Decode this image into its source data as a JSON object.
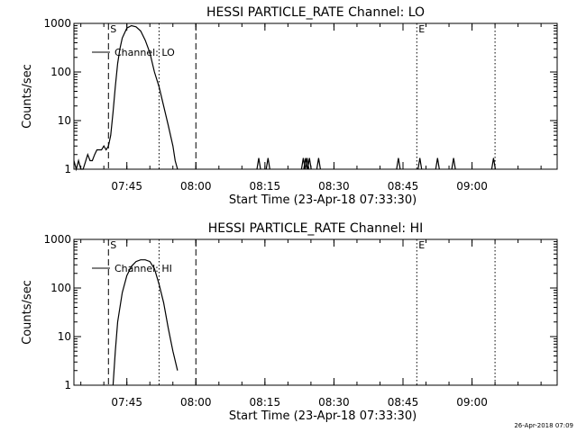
{
  "footer": {
    "timestamp": "26-Apr-2018 07:09"
  },
  "chart_data": [
    {
      "type": "line",
      "title": "HESSI PARTICLE_RATE Channel: LO",
      "xlabel": "Start Time (23-Apr-18 07:33:30)",
      "ylabel": "Counts/sec",
      "yscale": "log",
      "ylim": [
        1,
        1000
      ],
      "xlim_minutes_after_start": [
        0,
        105
      ],
      "x_ticks": [
        "07:45",
        "08:00",
        "08:15",
        "08:30",
        "08:45",
        "09:00"
      ],
      "y_ticks": [
        "1",
        "10",
        "100",
        "1000"
      ],
      "legend": {
        "label": "Channel: LO",
        "position": "top-left"
      },
      "markers": [
        {
          "label": "S",
          "time": "07:41",
          "style": "dashed"
        },
        {
          "label": "",
          "time": "07:52",
          "style": "dotted"
        },
        {
          "label": "",
          "time": "08:00",
          "style": "dashed"
        },
        {
          "label": "E",
          "time": "08:48",
          "style": "dotted"
        },
        {
          "label": "",
          "time": "09:05",
          "style": "dotted"
        }
      ],
      "series": [
        {
          "name": "Channel: LO",
          "x": [
            "07:33:30",
            "07:34:00",
            "07:34:30",
            "07:35:00",
            "07:35:30",
            "07:36:30",
            "07:37:00",
            "07:37:30",
            "07:38:00",
            "07:38:30",
            "07:39:00",
            "07:39:30",
            "07:40:00",
            "07:40:30",
            "07:41:00",
            "07:41:30",
            "07:42:00",
            "07:42:30",
            "07:43:00",
            "07:43:30",
            "07:44:00",
            "07:45:00",
            "07:46:00",
            "07:47:00",
            "07:48:00",
            "07:49:00",
            "07:50:00",
            "07:51:00",
            "07:52:00",
            "07:53:00",
            "07:54:00",
            "07:55:00",
            "07:55:30",
            "07:56:00"
          ],
          "y": [
            1.5,
            1,
            1.5,
            1,
            1,
            2,
            1.5,
            1.5,
            2,
            2.5,
            2.5,
            2.5,
            3,
            2.5,
            3,
            5,
            15,
            50,
            150,
            300,
            500,
            800,
            900,
            850,
            700,
            450,
            250,
            100,
            50,
            20,
            8,
            3,
            1.5,
            1
          ]
        },
        {
          "name": "Channel: LO spikes",
          "x": [
            "08:13:40",
            "08:15:40",
            "08:23:20",
            "08:23:50",
            "08:24:10",
            "08:24:40",
            "08:26:40",
            "08:44:00",
            "08:48:40",
            "08:52:30",
            "08:56:00",
            "09:04:40"
          ],
          "y": [
            1.7,
            1.7,
            1.7,
            1.7,
            1.7,
            1.7,
            1.7,
            1.7,
            1.7,
            1.7,
            1.7,
            1.7
          ]
        }
      ]
    },
    {
      "type": "line",
      "title": "HESSI PARTICLE_RATE Channel: HI",
      "xlabel": "Start Time (23-Apr-18 07:33:30)",
      "ylabel": "Counts/sec",
      "yscale": "log",
      "ylim": [
        1,
        1000
      ],
      "xlim_minutes_after_start": [
        0,
        105
      ],
      "x_ticks": [
        "07:45",
        "08:00",
        "08:15",
        "08:30",
        "08:45",
        "09:00"
      ],
      "y_ticks": [
        "1",
        "10",
        "100",
        "1000"
      ],
      "legend": {
        "label": "Channel: HI",
        "position": "top-left"
      },
      "markers": [
        {
          "label": "S",
          "time": "07:41",
          "style": "dashed"
        },
        {
          "label": "",
          "time": "07:52",
          "style": "dotted"
        },
        {
          "label": "",
          "time": "08:00",
          "style": "dashed"
        },
        {
          "label": "E",
          "time": "08:48",
          "style": "dotted"
        },
        {
          "label": "",
          "time": "09:05",
          "style": "dotted"
        }
      ],
      "series": [
        {
          "name": "Channel: HI",
          "x": [
            "07:42:00",
            "07:42:30",
            "07:43:00",
            "07:44:00",
            "07:45:00",
            "07:46:00",
            "07:47:00",
            "07:48:00",
            "07:49:00",
            "07:50:00",
            "07:51:00",
            "07:52:00",
            "07:53:00",
            "07:54:00",
            "07:55:00",
            "07:56:00"
          ],
          "y": [
            1,
            5,
            20,
            80,
            180,
            280,
            350,
            380,
            380,
            350,
            250,
            120,
            50,
            15,
            5,
            2
          ]
        }
      ]
    }
  ]
}
